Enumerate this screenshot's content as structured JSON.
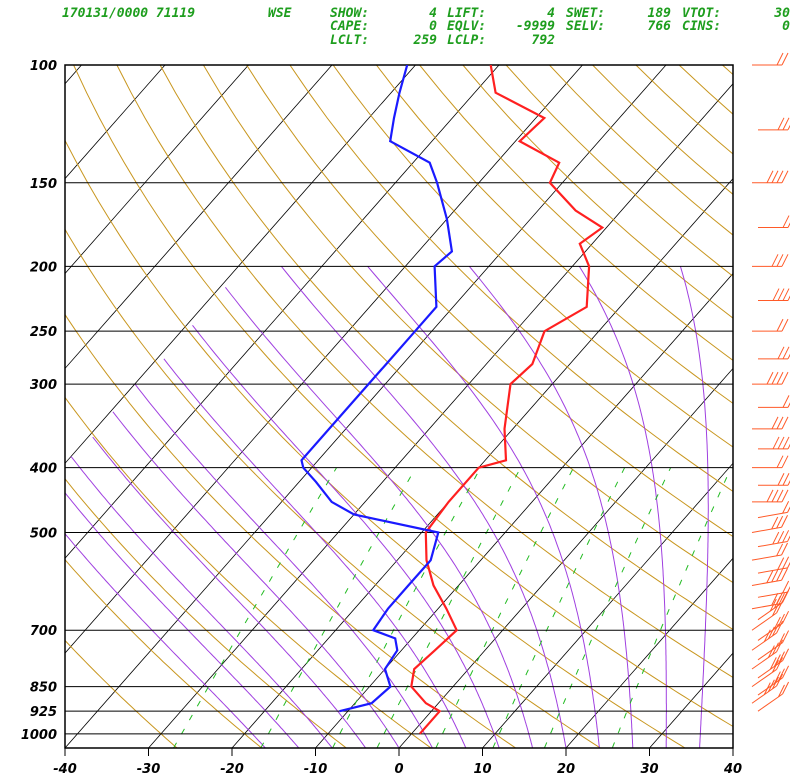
{
  "header": {
    "station_line": "170131/0000 71119",
    "station_id": "WSE",
    "indices": [
      [
        "SHOW:",
        "4",
        "LIFT:",
        "4",
        "SWET:",
        "189",
        "VTOT:",
        "30"
      ],
      [
        "CAPE:",
        "0",
        "EQLV:",
        "-9999",
        "SELV:",
        "766",
        "CINS:",
        "0"
      ],
      [
        "LCLT:",
        "259",
        "LCLP:",
        "792",
        "",
        "",
        "",
        ""
      ]
    ]
  },
  "colors": {
    "temperature": "#ff2020",
    "dewpoint": "#1a1aff",
    "isotherm": "#000000",
    "dry_adiabat": "#c8961e",
    "moist_adiabat": "#a040e0",
    "mixing_ratio": "#22bb22",
    "wind_barb": "#ff5a28",
    "header": "#1e9e1e"
  },
  "chart_data": {
    "type": "skew-t log-p sounding",
    "xlabel": "",
    "ylabel": "",
    "x_ticks": [
      "-40",
      "-30",
      "-20",
      "-10",
      "0",
      "10",
      "20",
      "30",
      "40"
    ],
    "y_ticks": [
      "100",
      "150",
      "200",
      "250",
      "300",
      "400",
      "500",
      "700",
      "850",
      "925",
      "1000"
    ],
    "xlim": [
      -40,
      40
    ],
    "ylim": [
      1050,
      100
    ],
    "temperature_profile": [
      [
        1000,
        1.0
      ],
      [
        925,
        1.0
      ],
      [
        900,
        -1.5
      ],
      [
        850,
        -5.0
      ],
      [
        800,
        -6.5
      ],
      [
        750,
        -6.0
      ],
      [
        700,
        -5.5
      ],
      [
        650,
        -9.0
      ],
      [
        600,
        -13.0
      ],
      [
        550,
        -16.5
      ],
      [
        500,
        -19.5
      ],
      [
        450,
        -20.0
      ],
      [
        400,
        -20.0
      ],
      [
        390,
        -17.5
      ],
      [
        350,
        -21.0
      ],
      [
        300,
        -25.0
      ],
      [
        280,
        -24.5
      ],
      [
        250,
        -26.5
      ],
      [
        230,
        -24.0
      ],
      [
        200,
        -28.0
      ],
      [
        185,
        -31.5
      ],
      [
        175,
        -30.5
      ],
      [
        165,
        -35.5
      ],
      [
        150,
        -41.5
      ],
      [
        140,
        -42.5
      ],
      [
        130,
        -49.5
      ],
      [
        120,
        -49.0
      ],
      [
        110,
        -57.5
      ],
      [
        100,
        -61.0
      ]
    ],
    "dewpoint_profile": [
      [
        925,
        -11.0
      ],
      [
        900,
        -8.0
      ],
      [
        850,
        -7.5
      ],
      [
        800,
        -10.0
      ],
      [
        750,
        -10.5
      ],
      [
        720,
        -12.0
      ],
      [
        700,
        -15.5
      ],
      [
        650,
        -16.0
      ],
      [
        600,
        -16.0
      ],
      [
        550,
        -16.0
      ],
      [
        500,
        -18.0
      ],
      [
        470,
        -30.0
      ],
      [
        450,
        -34.0
      ],
      [
        420,
        -38.0
      ],
      [
        400,
        -41.0
      ],
      [
        390,
        -42.0
      ],
      [
        350,
        -42.0
      ],
      [
        300,
        -42.0
      ],
      [
        280,
        -42.0
      ],
      [
        250,
        -42.0
      ],
      [
        230,
        -42.0
      ],
      [
        200,
        -46.5
      ],
      [
        190,
        -46.0
      ],
      [
        170,
        -50.0
      ],
      [
        150,
        -55.0
      ],
      [
        140,
        -58.0
      ],
      [
        130,
        -65.0
      ],
      [
        120,
        -67.0
      ],
      [
        110,
        -69.0
      ],
      [
        100,
        -71.0
      ]
    ],
    "wind_barbs_present": true
  }
}
